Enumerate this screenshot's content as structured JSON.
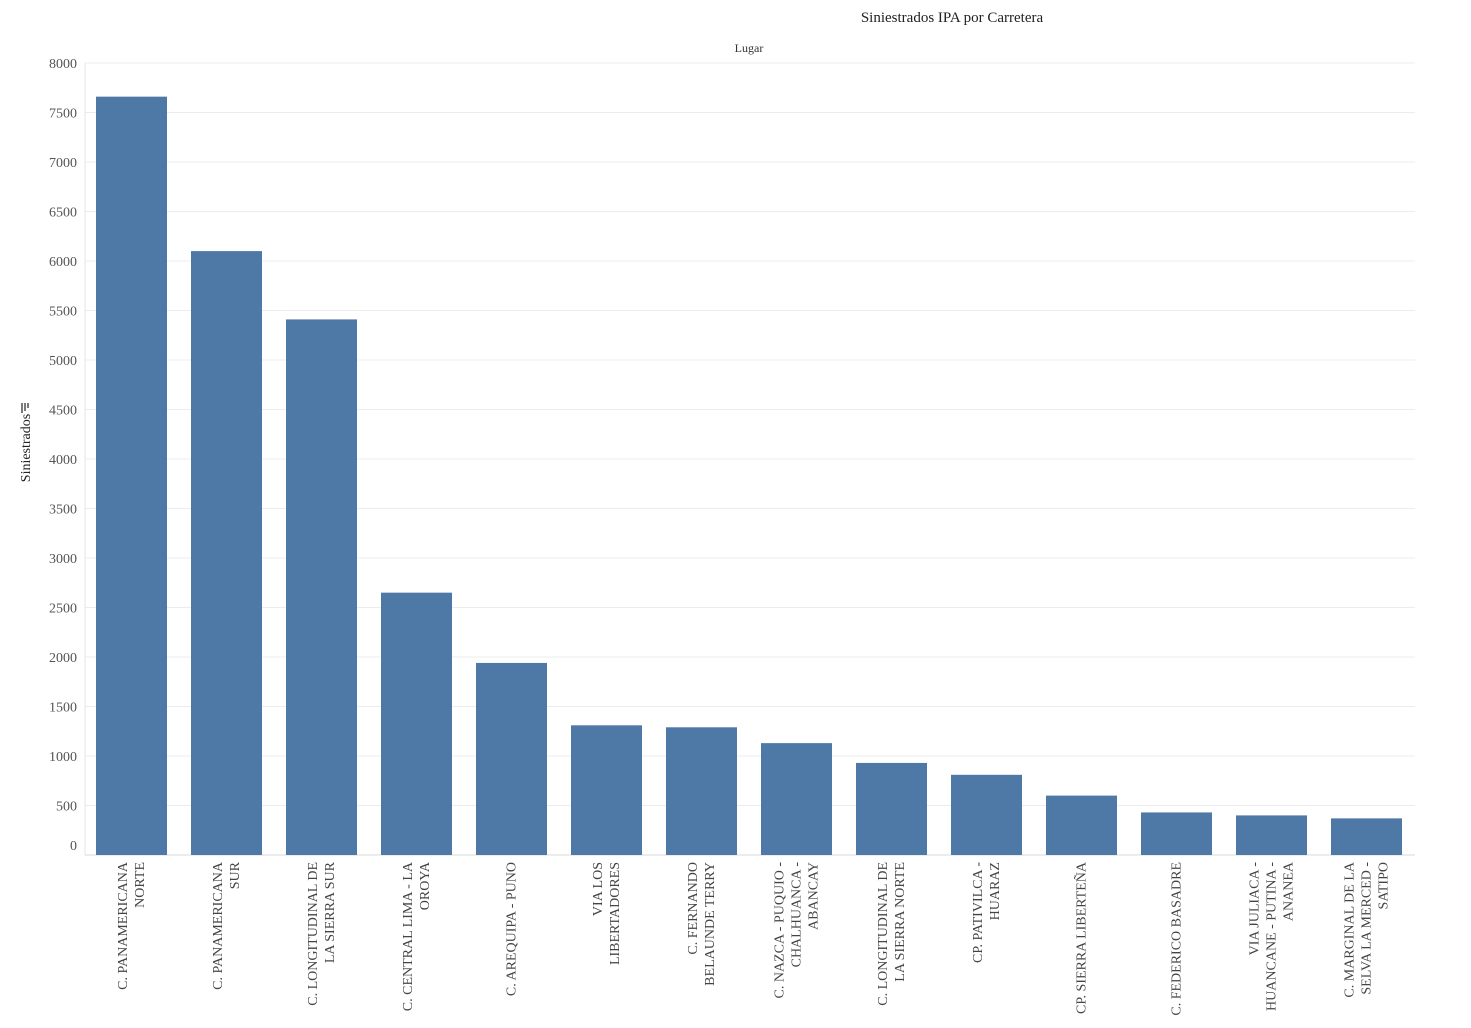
{
  "chart_data": {
    "type": "bar",
    "title": "Siniestrados IPA por Carretera",
    "column_header": "Lugar",
    "ylabel": "Siniestrados",
    "ylabel_icon": "sort-descending-icon",
    "ylim": [
      0,
      8000
    ],
    "yticks": [
      0,
      500,
      1000,
      1500,
      2000,
      2500,
      3000,
      3500,
      4000,
      4500,
      5000,
      5500,
      6000,
      6500,
      7000,
      7500,
      8000
    ],
    "grid": true,
    "bar_color": "#4e79a7",
    "categories": [
      [
        "C. PANAMERICANA",
        "NORTE"
      ],
      [
        "C. PANAMERICANA",
        "SUR"
      ],
      [
        "C. LONGITUDINAL DE",
        "LA SIERRA SUR"
      ],
      [
        "C. CENTRAL LIMA - LA",
        "OROYA"
      ],
      [
        "C. AREQUIPA - PUNO"
      ],
      [
        "VIA LOS",
        "LIBERTADORES"
      ],
      [
        "C. FERNANDO",
        "BELAUNDE TERRY"
      ],
      [
        "C. NAZCA - PUQUIO -",
        "CHALHUANCA -",
        "ABANCAY"
      ],
      [
        "C. LONGITUDINAL DE",
        "LA SIERRA NORTE"
      ],
      [
        "CP. PATIVILCA -",
        "HUARAZ"
      ],
      [
        "CP. SIERRA LIBERTEÑA"
      ],
      [
        "C. FEDERICO BASADRE"
      ],
      [
        "VIA JULIACA -",
        "HUANCANE - PUTINA -",
        "ANANEA"
      ],
      [
        "C. MARGINAL DE LA",
        "SELVA LA MERCED -",
        "SATIPO"
      ]
    ],
    "values": [
      7660,
      6100,
      5410,
      2650,
      1940,
      1310,
      1290,
      1130,
      930,
      810,
      600,
      430,
      400,
      370
    ]
  }
}
